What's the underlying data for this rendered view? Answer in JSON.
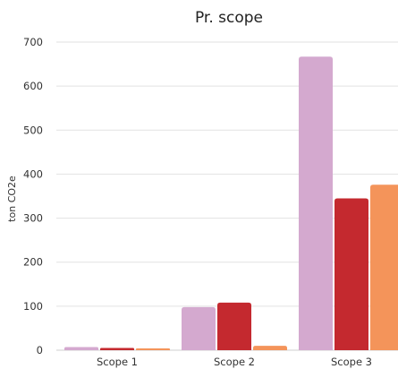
{
  "chart_data": {
    "type": "bar",
    "title": "Pr. scope",
    "xlabel": "",
    "ylabel": "ton CO2e",
    "categories": [
      "Scope 1",
      "Scope 2",
      "Scope 3"
    ],
    "ylim": [
      0,
      700
    ],
    "yticks": [
      0,
      100,
      200,
      300,
      400,
      500,
      600,
      700
    ],
    "grid": true,
    "legend": "none",
    "series": [
      {
        "values": [
          7,
          98,
          667
        ],
        "color": "#d4a9cf"
      },
      {
        "values": [
          5,
          108,
          345
        ],
        "color": "#c4292f"
      },
      {
        "values": [
          4,
          10,
          376
        ],
        "color": "#f4945a"
      }
    ]
  }
}
